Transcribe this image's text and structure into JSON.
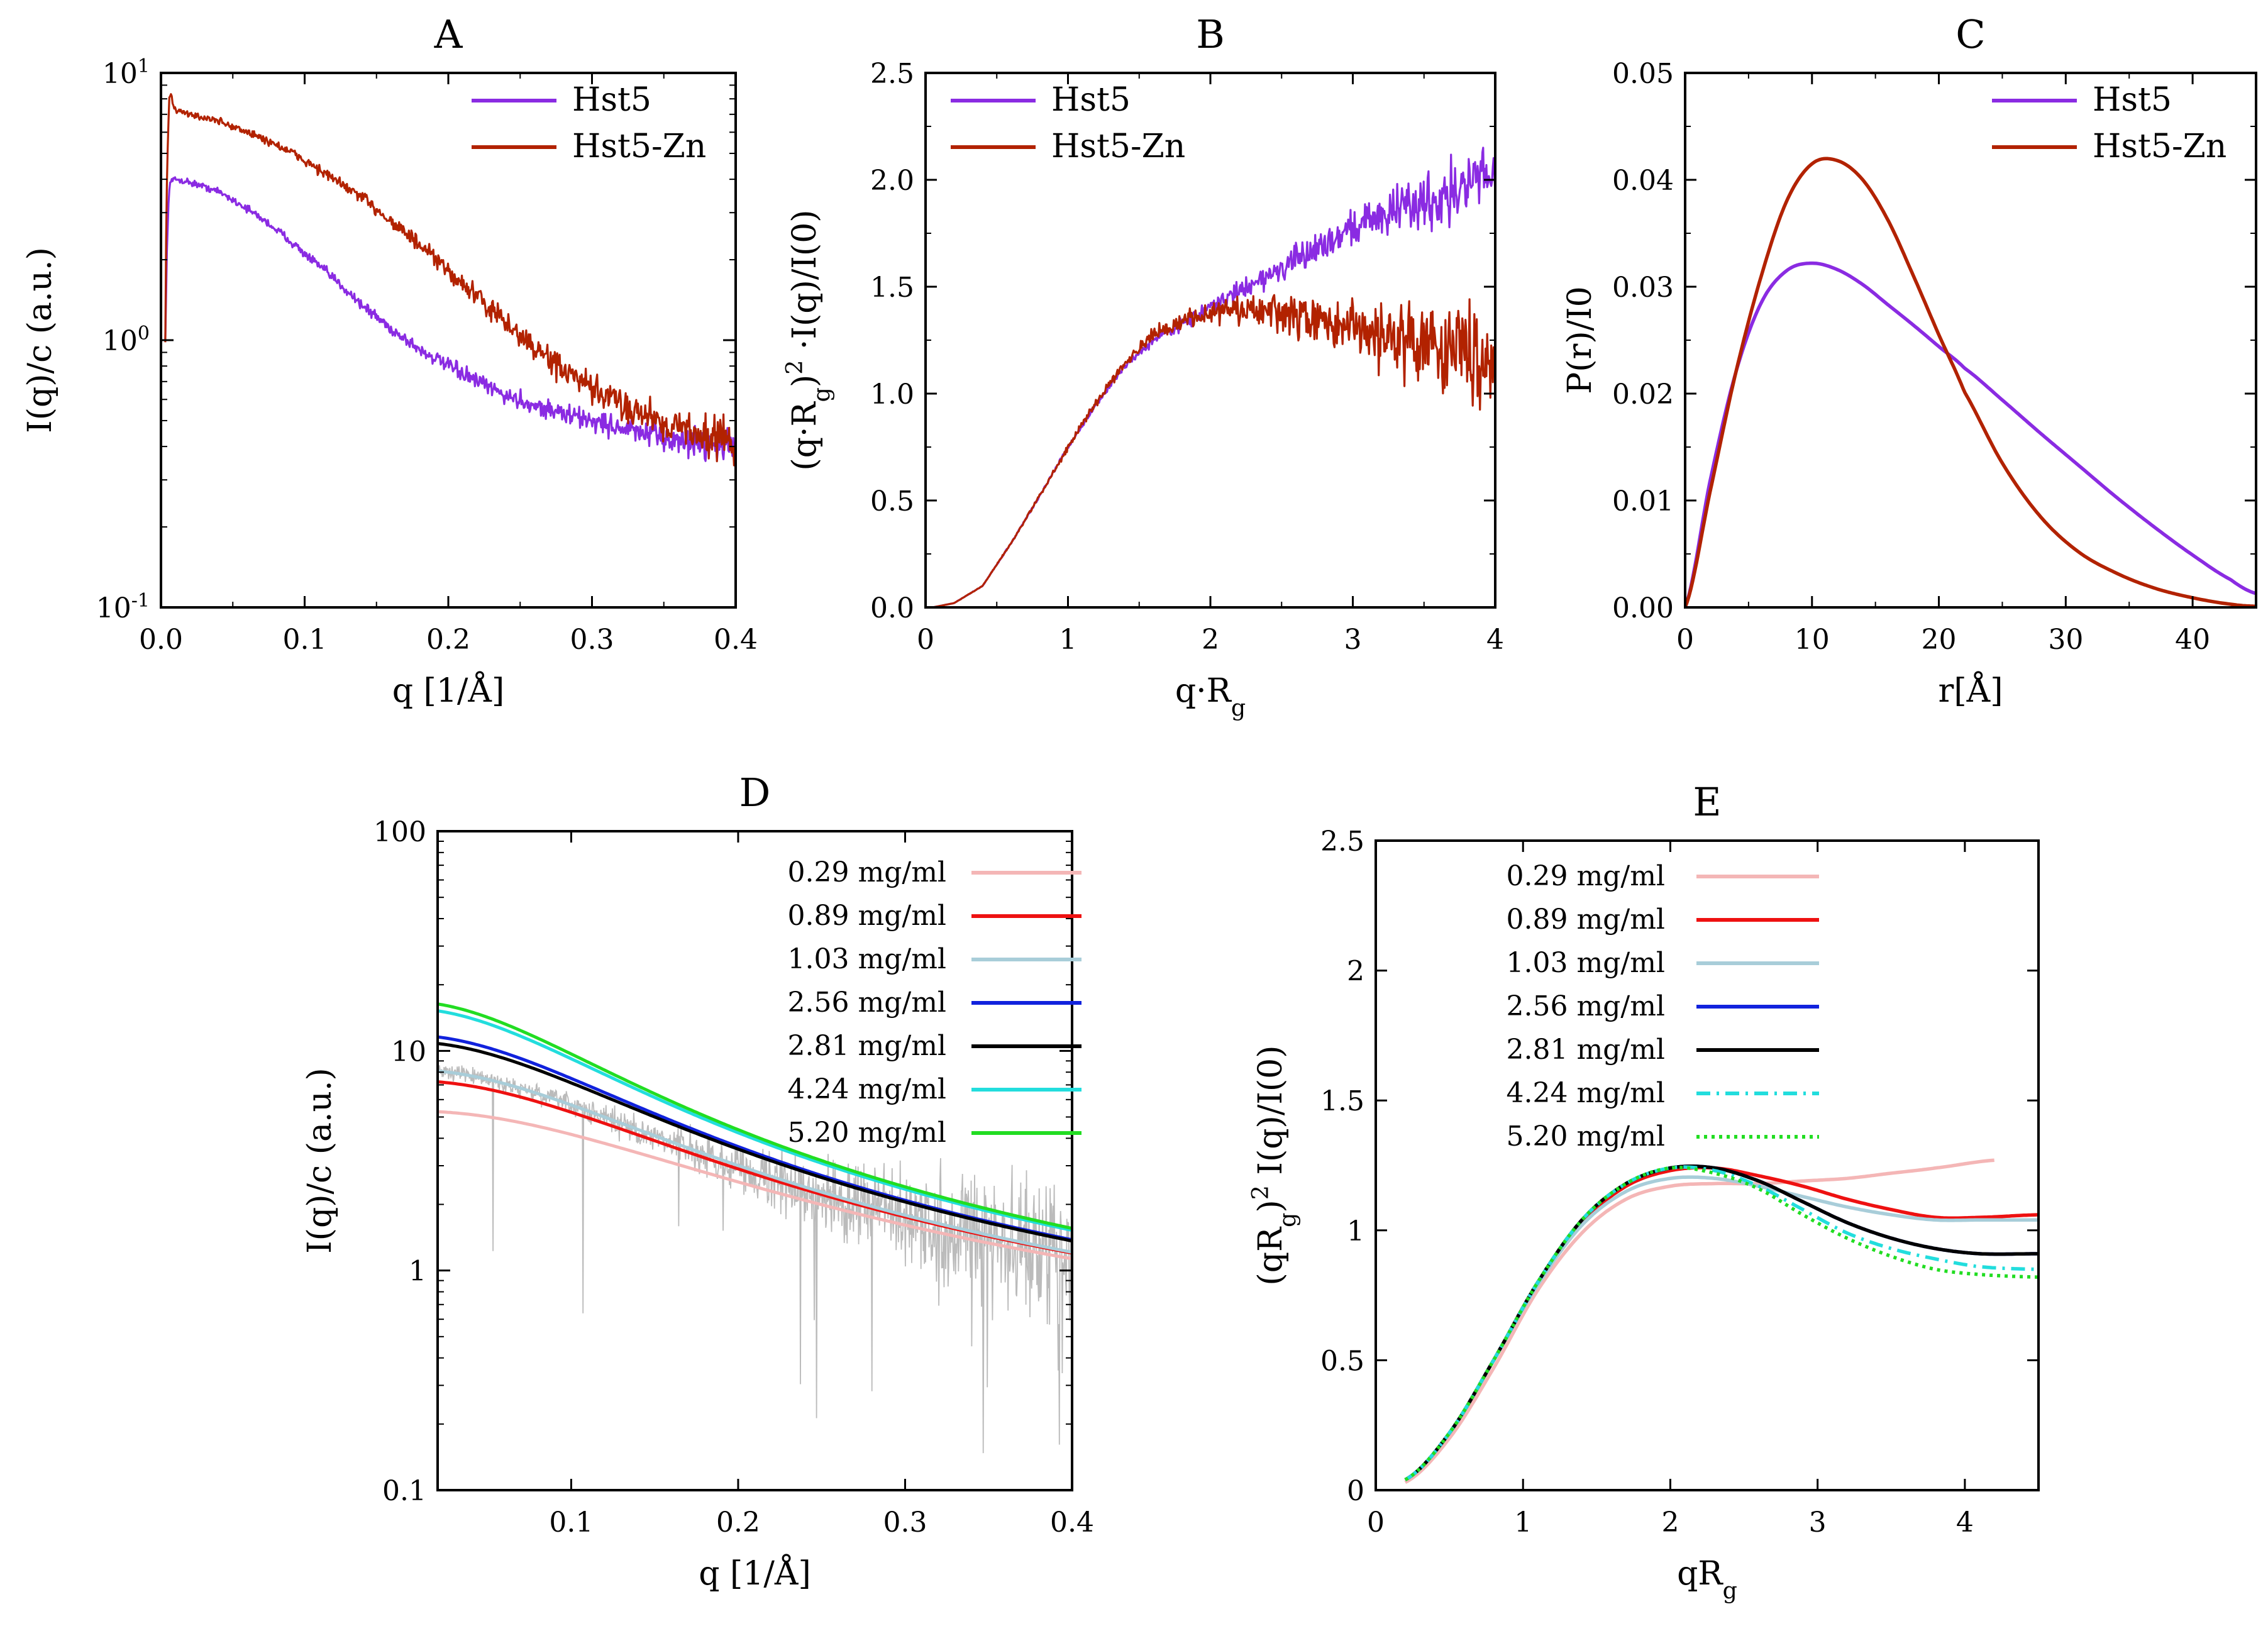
{
  "chart_data": [
    {
      "panel": "A",
      "title": "A",
      "type": "line",
      "xlabel": "q [1/Å]",
      "ylabel": "I(q)/c (a.u.)",
      "xlim": [
        0,
        0.4
      ],
      "ylim": [
        0.1,
        10
      ],
      "yscale": "log",
      "grid": false,
      "legend": "top-right",
      "xticks": [
        "0.0",
        "0.1",
        "0.2",
        "0.3",
        "0.4"
      ],
      "yticks": [
        {
          "base": "10",
          "exp": "-1",
          "v": 0.1
        },
        {
          "base": "10",
          "exp": "0",
          "v": 1
        },
        {
          "base": "10",
          "exp": "1",
          "v": 10
        }
      ],
      "series": [
        {
          "name": "Hst5",
          "color": "#8a2be2",
          "x": [
            0.003,
            0.006,
            0.01,
            0.02,
            0.04,
            0.06,
            0.08,
            0.1,
            0.12,
            0.14,
            0.16,
            0.18,
            0.2,
            0.22,
            0.24,
            0.26,
            0.28,
            0.3,
            0.32,
            0.34,
            0.36,
            0.38,
            0.4
          ],
          "y": [
            1.0,
            3.9,
            4.0,
            3.9,
            3.6,
            3.1,
            2.6,
            2.1,
            1.7,
            1.35,
            1.1,
            0.92,
            0.8,
            0.7,
            0.62,
            0.57,
            0.53,
            0.5,
            0.47,
            0.44,
            0.42,
            0.41,
            0.4
          ],
          "noise": [
            0.02,
            0.1
          ]
        },
        {
          "name": "Hst5-Zn",
          "color": "#b22200",
          "x": [
            0.003,
            0.006,
            0.01,
            0.02,
            0.04,
            0.06,
            0.08,
            0.1,
            0.12,
            0.14,
            0.16,
            0.18,
            0.2,
            0.22,
            0.24,
            0.26,
            0.28,
            0.3,
            0.32,
            0.34,
            0.36,
            0.38,
            0.4
          ],
          "y": [
            1.0,
            8.5,
            7.2,
            7.0,
            6.6,
            6.0,
            5.4,
            4.7,
            4.0,
            3.4,
            2.8,
            2.25,
            1.8,
            1.45,
            1.15,
            0.93,
            0.77,
            0.65,
            0.58,
            0.52,
            0.47,
            0.44,
            0.42
          ],
          "noise": [
            0.02,
            0.14
          ]
        }
      ]
    },
    {
      "panel": "B",
      "title": "B",
      "type": "line",
      "xlabel": "q·R_g",
      "ylabel": "(q·R_g)^2 ·I(q)/I(0)",
      "xlim": [
        0,
        4
      ],
      "ylim": [
        0,
        2.5
      ],
      "yscale": "linear",
      "grid": false,
      "legend": "top-left",
      "xticks": [
        "0",
        "1",
        "2",
        "3",
        "4"
      ],
      "yticks": [
        "0.0",
        "0.5",
        "1.0",
        "1.5",
        "2.0",
        "2.5"
      ],
      "series": [
        {
          "name": "Hst5",
          "color": "#8a2be2",
          "x": [
            0.05,
            0.2,
            0.4,
            0.6,
            0.8,
            1.0,
            1.2,
            1.4,
            1.6,
            1.8,
            2.0,
            2.2,
            2.4,
            2.6,
            2.8,
            3.0,
            3.2,
            3.4,
            3.6,
            3.8,
            4.0
          ],
          "y": [
            0,
            0.02,
            0.1,
            0.3,
            0.52,
            0.75,
            0.95,
            1.13,
            1.25,
            1.33,
            1.4,
            1.48,
            1.55,
            1.62,
            1.7,
            1.78,
            1.84,
            1.88,
            1.92,
            1.97,
            2.05
          ],
          "noise": [
            0.0,
            0.09
          ]
        },
        {
          "name": "Hst5-Zn",
          "color": "#b22200",
          "x": [
            0.05,
            0.2,
            0.4,
            0.6,
            0.8,
            1.0,
            1.2,
            1.4,
            1.6,
            1.8,
            2.0,
            2.2,
            2.4,
            2.6,
            2.8,
            3.0,
            3.2,
            3.4,
            3.6,
            3.8,
            4.0
          ],
          "y": [
            0,
            0.02,
            0.1,
            0.3,
            0.52,
            0.75,
            0.96,
            1.15,
            1.27,
            1.34,
            1.38,
            1.39,
            1.38,
            1.36,
            1.33,
            1.3,
            1.28,
            1.25,
            1.23,
            1.2,
            1.18
          ],
          "noise": [
            0.0,
            0.13
          ]
        }
      ]
    },
    {
      "panel": "C",
      "title": "C",
      "type": "line",
      "xlabel": "r[Å]",
      "ylabel": "P(r)/I0",
      "xlim": [
        0,
        45
      ],
      "ylim": [
        0,
        0.05
      ],
      "yscale": "linear",
      "grid": false,
      "legend": "top-right",
      "xticks": [
        "0",
        "10",
        "20",
        "30",
        "40"
      ],
      "yticks": [
        "0.00",
        "0.01",
        "0.02",
        "0.03",
        "0.04",
        "0.05"
      ],
      "series": [
        {
          "name": "Hst5",
          "color": "#8a2be2",
          "x": [
            0,
            2,
            4,
            6,
            8,
            10,
            12,
            14,
            16,
            18,
            20,
            22,
            25,
            28,
            31,
            34,
            37,
            40,
            43,
            45
          ],
          "y": [
            0,
            0.012,
            0.022,
            0.0285,
            0.0315,
            0.0322,
            0.0316,
            0.0302,
            0.0283,
            0.0264,
            0.0244,
            0.0224,
            0.0194,
            0.0163,
            0.0133,
            0.0103,
            0.0075,
            0.0049,
            0.0026,
            0.0013
          ]
        },
        {
          "name": "Hst5-Zn",
          "color": "#b22200",
          "x": [
            0,
            2,
            4,
            6,
            8,
            10,
            12,
            14,
            16,
            18,
            20,
            22,
            25,
            28,
            31,
            34,
            37,
            40,
            43,
            45
          ],
          "y": [
            0,
            0.011,
            0.022,
            0.031,
            0.038,
            0.0415,
            0.0418,
            0.04,
            0.0362,
            0.031,
            0.0255,
            0.0202,
            0.0135,
            0.0085,
            0.0052,
            0.0032,
            0.0018,
            0.0009,
            0.0003,
            0.0001
          ]
        }
      ]
    },
    {
      "panel": "D",
      "title": "D",
      "type": "line",
      "xlabel": "q [1/Å]",
      "ylabel": "I(q)/c (a.u.)",
      "xlim": [
        0.02,
        0.4
      ],
      "ylim": [
        0.1,
        100
      ],
      "yscale": "log",
      "grid": false,
      "legend": "top-right",
      "xticks": [
        "0.1",
        "0.2",
        "0.3",
        "0.4"
      ],
      "xtick_values": [
        0.1,
        0.2,
        0.3,
        0.4
      ],
      "yticks": [
        "0.1",
        "1",
        "10",
        "100"
      ],
      "ytick_values": [
        0.1,
        1,
        10,
        100
      ],
      "background_data": {
        "color": "#bbbbbb",
        "x_range": [
          0.02,
          0.4
        ]
      },
      "series": [
        {
          "name": "0.29 mg/ml",
          "color": "#f4b6b6",
          "dash": "solid",
          "I0": 5.3,
          "Rg": 10.0
        },
        {
          "name": "0.89 mg/ml",
          "color": "#ee1111",
          "dash": "solid",
          "I0": 7.3,
          "Rg": 11.5
        },
        {
          "name": "1.03 mg/ml",
          "color": "#a8cdd9",
          "dash": "solid",
          "I0": 8.2,
          "Rg": 12.2
        },
        {
          "name": "2.56 mg/ml",
          "color": "#1122dd",
          "dash": "solid",
          "I0": 11.8,
          "Rg": 13.6
        },
        {
          "name": "2.81 mg/ml",
          "color": "#000000",
          "dash": "solid",
          "I0": 11.0,
          "Rg": 13.2
        },
        {
          "name": "4.24 mg/ml",
          "color": "#22dddd",
          "dash": "solid",
          "I0": 15.6,
          "Rg": 14.8
        },
        {
          "name": "5.20 mg/ml",
          "color": "#22dd22",
          "dash": "solid",
          "I0": 16.8,
          "Rg": 15.2
        }
      ]
    },
    {
      "panel": "E",
      "title": "E",
      "type": "line",
      "xlabel": "qR_g",
      "ylabel": "(qR_g)^2 I(q)/I(0)",
      "xlim": [
        0,
        4.5
      ],
      "ylim": [
        0,
        2.5
      ],
      "yscale": "linear",
      "grid": false,
      "legend": "top-right",
      "xticks": [
        "0",
        "1",
        "2",
        "3",
        "4"
      ],
      "yticks": [
        "0",
        "0.5",
        "1",
        "1.5",
        "2",
        "2.5"
      ],
      "series": [
        {
          "name": "0.29 mg/ml",
          "color": "#f4b6b6",
          "dash": "solid",
          "x": [
            0.2,
            0.5,
            0.8,
            1.1,
            1.4,
            1.7,
            2.0,
            2.3,
            2.6,
            2.9,
            3.2,
            3.5,
            3.8,
            4.2
          ],
          "y": [
            0.03,
            0.2,
            0.47,
            0.77,
            0.99,
            1.12,
            1.17,
            1.18,
            1.18,
            1.19,
            1.2,
            1.22,
            1.24,
            1.27
          ]
        },
        {
          "name": "0.89 mg/ml",
          "color": "#ee1111",
          "dash": "solid",
          "x": [
            0.2,
            0.5,
            0.8,
            1.1,
            1.4,
            1.7,
            2.0,
            2.3,
            2.6,
            2.9,
            3.2,
            3.5,
            3.8,
            4.1,
            4.5
          ],
          "y": [
            0.04,
            0.22,
            0.5,
            0.8,
            1.03,
            1.17,
            1.23,
            1.24,
            1.21,
            1.17,
            1.12,
            1.08,
            1.05,
            1.05,
            1.06
          ]
        },
        {
          "name": "1.03 mg/ml",
          "color": "#a8cdd9",
          "dash": "solid",
          "x": [
            0.2,
            0.5,
            0.8,
            1.1,
            1.4,
            1.7,
            2.0,
            2.3,
            2.6,
            2.9,
            3.2,
            3.5,
            3.8,
            4.1,
            4.5
          ],
          "y": [
            0.04,
            0.22,
            0.5,
            0.79,
            1.02,
            1.15,
            1.2,
            1.2,
            1.17,
            1.13,
            1.09,
            1.06,
            1.04,
            1.04,
            1.04
          ]
        },
        {
          "name": "2.56 mg/ml",
          "color": "#1122dd",
          "dash": "solid",
          "x": [
            0.2,
            0.5,
            0.8,
            1.1,
            1.4,
            1.7,
            2.0,
            2.3,
            2.6,
            2.9,
            3.2,
            3.5,
            3.8,
            4.1,
            4.5
          ],
          "y": [
            0.04,
            0.22,
            0.5,
            0.8,
            1.04,
            1.18,
            1.24,
            1.24,
            1.19,
            1.11,
            1.03,
            0.97,
            0.93,
            0.91,
            0.91
          ]
        },
        {
          "name": "2.81 mg/ml",
          "color": "#000000",
          "dash": "solid",
          "x": [
            0.2,
            0.5,
            0.8,
            1.1,
            1.4,
            1.7,
            2.0,
            2.3,
            2.6,
            2.9,
            3.2,
            3.5,
            3.8,
            4.1,
            4.5
          ],
          "y": [
            0.04,
            0.22,
            0.5,
            0.8,
            1.04,
            1.18,
            1.24,
            1.24,
            1.19,
            1.11,
            1.03,
            0.97,
            0.93,
            0.91,
            0.91
          ]
        },
        {
          "name": "4.24 mg/ml",
          "color": "#22dddd",
          "dash": "dashdot",
          "x": [
            0.2,
            0.5,
            0.8,
            1.1,
            1.4,
            1.7,
            2.0,
            2.3,
            2.6,
            2.9,
            3.2,
            3.5,
            3.8,
            4.1,
            4.5
          ],
          "y": [
            0.04,
            0.22,
            0.5,
            0.8,
            1.04,
            1.18,
            1.24,
            1.23,
            1.17,
            1.08,
            0.99,
            0.93,
            0.89,
            0.86,
            0.85
          ]
        },
        {
          "name": "5.20 mg/ml",
          "color": "#22dd22",
          "dash": "dotted",
          "x": [
            0.2,
            0.5,
            0.8,
            1.1,
            1.4,
            1.7,
            2.0,
            2.3,
            2.6,
            2.9,
            3.2,
            3.5,
            3.8,
            4.1,
            4.5
          ],
          "y": [
            0.04,
            0.22,
            0.5,
            0.8,
            1.04,
            1.18,
            1.24,
            1.22,
            1.16,
            1.06,
            0.97,
            0.9,
            0.85,
            0.83,
            0.82
          ]
        }
      ]
    }
  ]
}
